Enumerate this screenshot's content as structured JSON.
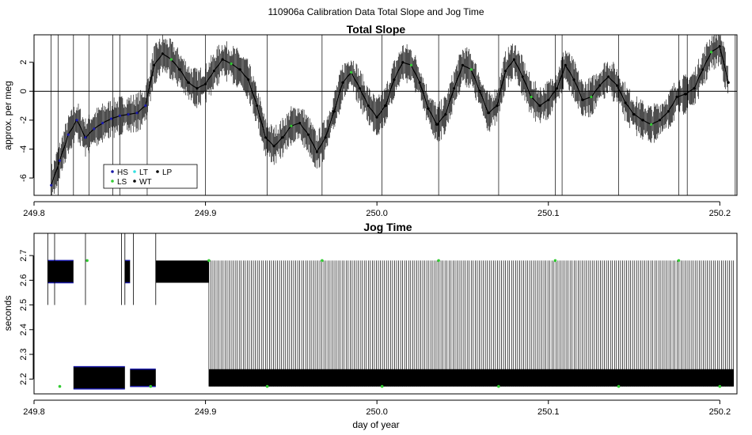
{
  "figure": {
    "title": "110906a   Calibration Data Total Slope and Jog Time",
    "xlabel": "day of year"
  },
  "chart_data": [
    {
      "type": "line",
      "title": "Total Slope",
      "ylabel": "approx. per meg",
      "xlim": [
        249.8,
        250.21
      ],
      "ylim": [
        -7.2,
        3.9
      ],
      "xticks": [
        249.8,
        249.9,
        250.0,
        250.1,
        250.2
      ],
      "xtick_labels": [
        "249.8",
        "249.9",
        "250.0",
        "250.1",
        "250.2"
      ],
      "yticks": [
        -6,
        -4,
        -2,
        0,
        2
      ],
      "ytick_labels": [
        "-6",
        "-4",
        "-2",
        "0",
        "2"
      ],
      "hline": 0,
      "x": [
        249.81,
        249.815,
        249.82,
        249.825,
        249.83,
        249.835,
        249.84,
        249.845,
        249.85,
        249.855,
        249.86,
        249.865,
        249.87,
        249.875,
        249.88,
        249.885,
        249.89,
        249.895,
        249.9,
        249.905,
        249.91,
        249.915,
        249.92,
        249.925,
        249.93,
        249.935,
        249.94,
        249.945,
        249.95,
        249.955,
        249.96,
        249.965,
        249.97,
        249.975,
        249.98,
        249.985,
        249.99,
        249.995,
        250.0,
        250.005,
        250.01,
        250.015,
        250.02,
        250.025,
        250.03,
        250.035,
        250.04,
        250.045,
        250.05,
        250.055,
        250.06,
        250.065,
        250.07,
        250.075,
        250.08,
        250.085,
        250.09,
        250.095,
        250.1,
        250.105,
        250.11,
        250.115,
        250.12,
        250.125,
        250.13,
        250.135,
        250.14,
        250.145,
        250.15,
        250.155,
        250.16,
        250.165,
        250.17,
        250.175,
        250.18,
        250.185,
        250.19,
        250.195,
        250.2,
        250.205
      ],
      "series": [
        {
          "name": "",
          "color": "#000000",
          "values": [
            -6.5,
            -4.8,
            -3.0,
            -2.0,
            -3.2,
            -2.6,
            -2.2,
            -1.9,
            -1.7,
            -1.6,
            -1.5,
            -1.0,
            1.8,
            2.6,
            2.2,
            1.5,
            0.6,
            0.2,
            0.5,
            1.4,
            2.2,
            1.9,
            1.5,
            0.8,
            -1.0,
            -3.2,
            -3.8,
            -3.2,
            -2.4,
            -2.2,
            -3.0,
            -4.2,
            -3.2,
            -1.4,
            0.6,
            1.3,
            0.2,
            -1.0,
            -1.8,
            -1.0,
            0.8,
            2.0,
            1.8,
            0.6,
            -1.2,
            -2.3,
            -1.6,
            0.2,
            1.8,
            1.5,
            0.0,
            -1.5,
            -1.0,
            1.4,
            2.2,
            1.0,
            -0.4,
            -1.0,
            -0.6,
            0.2,
            1.8,
            0.8,
            -0.6,
            -0.4,
            0.4,
            1.0,
            0.4,
            -0.8,
            -1.6,
            -2.0,
            -2.3,
            -2.0,
            -1.4,
            -0.4,
            -0.2,
            0.2,
            1.5,
            2.7,
            3.1,
            0.6
          ]
        }
      ],
      "legend": {
        "position": "bottom-left",
        "entries": [
          {
            "label": "HS",
            "color": "#1a1aa8"
          },
          {
            "label": "LT",
            "color": "#33e0e0"
          },
          {
            "label": "LP",
            "color": "#000000"
          },
          {
            "label": "LS",
            "color": "#33cc33"
          },
          {
            "label": "WT",
            "color": "#000000"
          }
        ]
      }
    },
    {
      "type": "line",
      "title": "Jog Time",
      "ylabel": "seconds",
      "xlim": [
        249.8,
        250.21
      ],
      "ylim": [
        2.14,
        2.79
      ],
      "xticks": [
        249.8,
        249.9,
        250.0,
        250.1,
        250.2
      ],
      "xtick_labels": [
        "249.8",
        "249.9",
        "250.0",
        "250.1",
        "250.2"
      ],
      "yticks": [
        2.2,
        2.3,
        2.4,
        2.5,
        2.6,
        2.7
      ],
      "ytick_labels": [
        "2.2",
        "2.3",
        "2.4",
        "2.5",
        "2.6",
        "2.7"
      ],
      "bands": [
        {
          "x_start": 249.808,
          "x_end": 249.823,
          "y_low": 2.59,
          "y_high": 2.68
        },
        {
          "x_start": 249.823,
          "x_end": 249.853,
          "y_low": 2.16,
          "y_high": 2.25
        },
        {
          "x_start": 249.853,
          "x_end": 249.856,
          "y_low": 2.59,
          "y_high": 2.68
        },
        {
          "x_start": 249.856,
          "x_end": 249.871,
          "y_low": 2.17,
          "y_high": 2.24
        },
        {
          "x_start": 249.871,
          "x_end": 249.902,
          "y_low": 2.59,
          "y_high": 2.68
        },
        {
          "x_start": 249.902,
          "x_end": 250.208,
          "y_low": 2.17,
          "y_high": 2.24
        }
      ],
      "oscillation": {
        "x_start": 249.902,
        "x_end": 250.208,
        "y_low": 2.17,
        "y_high": 2.68
      }
    }
  ]
}
